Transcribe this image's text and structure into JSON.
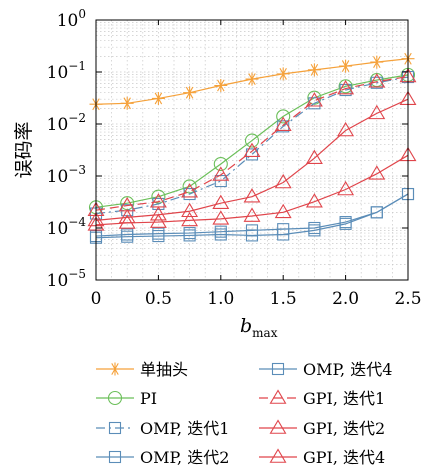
{
  "chart_data": {
    "type": "line",
    "title": "",
    "xlabel": "b",
    "xlabel_sub": "max",
    "ylabel": "误码率",
    "xlim": [
      0,
      2.5
    ],
    "ylim": [
      1e-05,
      1
    ],
    "y_scale": "log",
    "grid": "on (major and minor, dotted)",
    "x_ticks": [
      "0",
      "0.5",
      "1.0",
      "1.5",
      "2.0",
      "2.5"
    ],
    "y_ticks": [
      {
        "base": "10",
        "exp": "0"
      },
      {
        "base": "10",
        "exp": "−1"
      },
      {
        "base": "10",
        "exp": "−2"
      },
      {
        "base": "10",
        "exp": "−3"
      },
      {
        "base": "10",
        "exp": "−4"
      },
      {
        "base": "10",
        "exp": "−5"
      }
    ],
    "x": [
      0,
      0.25,
      0.5,
      0.75,
      1.0,
      1.25,
      1.5,
      1.75,
      2.0,
      2.25,
      2.5
    ],
    "legend_position": "bottom, two columns",
    "series": [
      {
        "name": "单抽头",
        "color": "#F5A13A",
        "marker": "star",
        "dash": "solid",
        "values": [
          0.024,
          0.025,
          0.031,
          0.04,
          0.055,
          0.073,
          0.092,
          0.11,
          0.13,
          0.155,
          0.18
        ]
      },
      {
        "name": "PI",
        "color": "#6BBF59",
        "marker": "circle",
        "dash": "solid",
        "values": [
          0.00025,
          0.0003,
          0.0004,
          0.00063,
          0.0017,
          0.0048,
          0.014,
          0.032,
          0.053,
          0.07,
          0.088
        ]
      },
      {
        "name": "OMP, 迭代1",
        "color": "#5B8DB8",
        "marker": "square",
        "dash": "dashdot",
        "values": [
          0.00019,
          0.00022,
          0.00029,
          0.00045,
          0.0008,
          0.0026,
          0.009,
          0.025,
          0.045,
          0.062,
          0.08
        ]
      },
      {
        "name": "OMP, 迭代2",
        "color": "#5B8DB8",
        "marker": "square",
        "dash": "solid",
        "values": [
          7e-05,
          7.5e-05,
          7.8e-05,
          8e-05,
          8.5e-05,
          9e-05,
          9.5e-05,
          0.0001,
          0.00013,
          0.0002,
          0.00045
        ]
      },
      {
        "name": "OMP, 迭代4",
        "color": "#5B8DB8",
        "marker": "square",
        "dash": "solid",
        "values": [
          6.5e-05,
          6.8e-05,
          7e-05,
          7.2e-05,
          7.5e-05,
          7.2e-05,
          7.5e-05,
          9e-05,
          0.00012,
          0.0002,
          0.00045
        ]
      },
      {
        "name": "GPI, 迭代1",
        "color": "#E0454B",
        "marker": "triangle",
        "dash": "dashed",
        "values": [
          0.00022,
          0.00027,
          0.00032,
          0.0005,
          0.00105,
          0.003,
          0.0095,
          0.028,
          0.048,
          0.065,
          0.082
        ]
      },
      {
        "name": "GPI, 迭代2",
        "color": "#E0454B",
        "marker": "triangle",
        "dash": "solid",
        "values": [
          0.00014,
          0.00016,
          0.00018,
          0.00021,
          0.0003,
          0.0004,
          0.00075,
          0.0022,
          0.0075,
          0.016,
          0.03
        ]
      },
      {
        "name": "GPI, 迭代4",
        "color": "#E0454B",
        "marker": "triangle",
        "dash": "solid",
        "values": [
          0.000115,
          0.000125,
          0.00013,
          0.00014,
          0.00015,
          0.00017,
          0.0002,
          0.00032,
          0.00055,
          0.0011,
          0.0025
        ]
      }
    ],
    "legend": [
      {
        "label": "单抽头",
        "series": 0,
        "col": 0,
        "row": 0
      },
      {
        "label": "PI",
        "series": 1,
        "col": 0,
        "row": 1
      },
      {
        "label": "OMP, 迭代1",
        "series": 2,
        "col": 0,
        "row": 2
      },
      {
        "label": "OMP, 迭代2",
        "series": 3,
        "col": 0,
        "row": 3
      },
      {
        "label": "OMP, 迭代4",
        "series": 4,
        "col": 1,
        "row": 0
      },
      {
        "label": "GPI, 迭代1",
        "series": 5,
        "col": 1,
        "row": 1
      },
      {
        "label": "GPI, 迭代2",
        "series": 6,
        "col": 1,
        "row": 2
      },
      {
        "label": "GPI, 迭代4",
        "series": 7,
        "col": 1,
        "row": 3
      }
    ]
  }
}
